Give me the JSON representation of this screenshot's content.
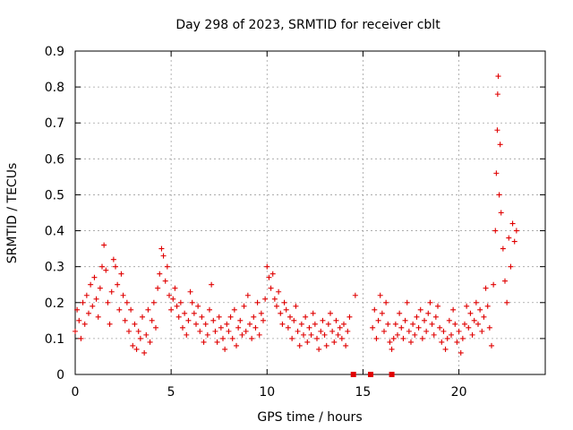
{
  "chart_data": {
    "type": "scatter",
    "title": "Day 298 of 2023, SRMTID for receiver cblt",
    "xlabel": "GPS time / hours",
    "ylabel": "SRMTID / TECUs",
    "xlim": [
      0,
      24.5
    ],
    "ylim": [
      0,
      0.9
    ],
    "x_ticks": [
      0,
      5,
      10,
      15,
      20
    ],
    "y_ticks": [
      0,
      0.1,
      0.2,
      0.3,
      0.4,
      0.5,
      0.6,
      0.7,
      0.8,
      0.9
    ],
    "x_tick_labels": [
      "0",
      "5",
      "10",
      "15",
      "20"
    ],
    "y_tick_labels": [
      "0",
      "0.1",
      "0.2",
      "0.3",
      "0.4",
      "0.5",
      "0.6",
      "0.7",
      "0.8",
      "0.9"
    ],
    "grid": true,
    "marker": "+",
    "color": "#e00000",
    "series": [
      {
        "name": "SRMTID",
        "points": [
          [
            0.0,
            0.12
          ],
          [
            0.1,
            0.18
          ],
          [
            0.2,
            0.15
          ],
          [
            0.3,
            0.1
          ],
          [
            0.4,
            0.2
          ],
          [
            0.5,
            0.14
          ],
          [
            0.6,
            0.22
          ],
          [
            0.7,
            0.17
          ],
          [
            0.8,
            0.25
          ],
          [
            0.9,
            0.19
          ],
          [
            1.0,
            0.27
          ],
          [
            1.1,
            0.21
          ],
          [
            1.2,
            0.16
          ],
          [
            1.3,
            0.24
          ],
          [
            1.4,
            0.3
          ],
          [
            1.5,
            0.36
          ],
          [
            1.6,
            0.29
          ],
          [
            1.7,
            0.2
          ],
          [
            1.8,
            0.14
          ],
          [
            1.9,
            0.23
          ],
          [
            2.0,
            0.32
          ],
          [
            2.1,
            0.3
          ],
          [
            2.2,
            0.25
          ],
          [
            2.3,
            0.18
          ],
          [
            2.4,
            0.28
          ],
          [
            2.5,
            0.22
          ],
          [
            2.6,
            0.15
          ],
          [
            2.7,
            0.2
          ],
          [
            2.8,
            0.12
          ],
          [
            2.9,
            0.18
          ],
          [
            3.0,
            0.08
          ],
          [
            3.1,
            0.14
          ],
          [
            3.2,
            0.07
          ],
          [
            3.3,
            0.12
          ],
          [
            3.4,
            0.1
          ],
          [
            3.5,
            0.16
          ],
          [
            3.6,
            0.06
          ],
          [
            3.7,
            0.11
          ],
          [
            3.8,
            0.18
          ],
          [
            3.9,
            0.09
          ],
          [
            4.0,
            0.15
          ],
          [
            4.1,
            0.2
          ],
          [
            4.2,
            0.13
          ],
          [
            4.3,
            0.24
          ],
          [
            4.4,
            0.28
          ],
          [
            4.5,
            0.35
          ],
          [
            4.6,
            0.33
          ],
          [
            4.7,
            0.26
          ],
          [
            4.8,
            0.3
          ],
          [
            4.9,
            0.22
          ],
          [
            5.0,
            0.18
          ],
          [
            5.1,
            0.21
          ],
          [
            5.2,
            0.24
          ],
          [
            5.3,
            0.19
          ],
          [
            5.4,
            0.16
          ],
          [
            5.5,
            0.2
          ],
          [
            5.6,
            0.13
          ],
          [
            5.7,
            0.17
          ],
          [
            5.8,
            0.11
          ],
          [
            5.9,
            0.15
          ],
          [
            6.0,
            0.23
          ],
          [
            6.1,
            0.2
          ],
          [
            6.2,
            0.17
          ],
          [
            6.3,
            0.14
          ],
          [
            6.4,
            0.19
          ],
          [
            6.5,
            0.12
          ],
          [
            6.6,
            0.16
          ],
          [
            6.7,
            0.09
          ],
          [
            6.8,
            0.14
          ],
          [
            6.9,
            0.11
          ],
          [
            7.0,
            0.18
          ],
          [
            7.1,
            0.25
          ],
          [
            7.2,
            0.15
          ],
          [
            7.3,
            0.12
          ],
          [
            7.4,
            0.09
          ],
          [
            7.5,
            0.16
          ],
          [
            7.6,
            0.13
          ],
          [
            7.7,
            0.1
          ],
          [
            7.8,
            0.07
          ],
          [
            7.9,
            0.14
          ],
          [
            8.0,
            0.12
          ],
          [
            8.1,
            0.16
          ],
          [
            8.2,
            0.1
          ],
          [
            8.3,
            0.18
          ],
          [
            8.4,
            0.08
          ],
          [
            8.5,
            0.13
          ],
          [
            8.6,
            0.15
          ],
          [
            8.7,
            0.11
          ],
          [
            8.8,
            0.19
          ],
          [
            8.9,
            0.12
          ],
          [
            9.0,
            0.22
          ],
          [
            9.1,
            0.14
          ],
          [
            9.2,
            0.1
          ],
          [
            9.3,
            0.16
          ],
          [
            9.4,
            0.13
          ],
          [
            9.5,
            0.2
          ],
          [
            9.6,
            0.11
          ],
          [
            9.7,
            0.17
          ],
          [
            9.8,
            0.15
          ],
          [
            9.9,
            0.21
          ],
          [
            10.0,
            0.3
          ],
          [
            10.1,
            0.27
          ],
          [
            10.2,
            0.24
          ],
          [
            10.3,
            0.28
          ],
          [
            10.4,
            0.21
          ],
          [
            10.5,
            0.19
          ],
          [
            10.6,
            0.23
          ],
          [
            10.7,
            0.17
          ],
          [
            10.8,
            0.14
          ],
          [
            10.9,
            0.2
          ],
          [
            11.0,
            0.18
          ],
          [
            11.1,
            0.13
          ],
          [
            11.2,
            0.16
          ],
          [
            11.3,
            0.1
          ],
          [
            11.4,
            0.15
          ],
          [
            11.5,
            0.19
          ],
          [
            11.6,
            0.12
          ],
          [
            11.7,
            0.08
          ],
          [
            11.8,
            0.14
          ],
          [
            11.9,
            0.11
          ],
          [
            12.0,
            0.16
          ],
          [
            12.1,
            0.09
          ],
          [
            12.2,
            0.13
          ],
          [
            12.3,
            0.11
          ],
          [
            12.4,
            0.17
          ],
          [
            12.5,
            0.14
          ],
          [
            12.6,
            0.1
          ],
          [
            12.7,
            0.07
          ],
          [
            12.8,
            0.12
          ],
          [
            12.9,
            0.15
          ],
          [
            13.0,
            0.11
          ],
          [
            13.1,
            0.08
          ],
          [
            13.2,
            0.14
          ],
          [
            13.3,
            0.17
          ],
          [
            13.4,
            0.12
          ],
          [
            13.5,
            0.09
          ],
          [
            13.6,
            0.15
          ],
          [
            13.7,
            0.11
          ],
          [
            13.8,
            0.13
          ],
          [
            13.9,
            0.1
          ],
          [
            14.0,
            0.14
          ],
          [
            14.1,
            0.08
          ],
          [
            14.2,
            0.12
          ],
          [
            14.3,
            0.16
          ],
          [
            14.6,
            0.22
          ],
          [
            15.5,
            0.13
          ],
          [
            15.6,
            0.18
          ],
          [
            15.7,
            0.1
          ],
          [
            15.8,
            0.15
          ],
          [
            15.9,
            0.22
          ],
          [
            16.0,
            0.17
          ],
          [
            16.1,
            0.12
          ],
          [
            16.2,
            0.2
          ],
          [
            16.3,
            0.14
          ],
          [
            16.4,
            0.09
          ],
          [
            16.5,
            0.07
          ],
          [
            16.6,
            0.1
          ],
          [
            16.7,
            0.14
          ],
          [
            16.8,
            0.11
          ],
          [
            16.9,
            0.17
          ],
          [
            17.0,
            0.13
          ],
          [
            17.1,
            0.1
          ],
          [
            17.2,
            0.15
          ],
          [
            17.3,
            0.2
          ],
          [
            17.4,
            0.12
          ],
          [
            17.5,
            0.09
          ],
          [
            17.6,
            0.14
          ],
          [
            17.7,
            0.11
          ],
          [
            17.8,
            0.16
          ],
          [
            17.9,
            0.13
          ],
          [
            18.0,
            0.18
          ],
          [
            18.1,
            0.1
          ],
          [
            18.2,
            0.15
          ],
          [
            18.3,
            0.12
          ],
          [
            18.4,
            0.17
          ],
          [
            18.5,
            0.2
          ],
          [
            18.6,
            0.14
          ],
          [
            18.7,
            0.11
          ],
          [
            18.8,
            0.16
          ],
          [
            18.9,
            0.19
          ],
          [
            19.0,
            0.13
          ],
          [
            19.1,
            0.09
          ],
          [
            19.2,
            0.12
          ],
          [
            19.3,
            0.07
          ],
          [
            19.4,
            0.1
          ],
          [
            19.5,
            0.15
          ],
          [
            19.6,
            0.11
          ],
          [
            19.7,
            0.18
          ],
          [
            19.8,
            0.14
          ],
          [
            19.9,
            0.09
          ],
          [
            20.0,
            0.12
          ],
          [
            20.1,
            0.06
          ],
          [
            20.2,
            0.1
          ],
          [
            20.3,
            0.14
          ],
          [
            20.4,
            0.19
          ],
          [
            20.5,
            0.13
          ],
          [
            20.6,
            0.17
          ],
          [
            20.7,
            0.11
          ],
          [
            20.8,
            0.15
          ],
          [
            20.9,
            0.2
          ],
          [
            21.0,
            0.14
          ],
          [
            21.1,
            0.18
          ],
          [
            21.2,
            0.12
          ],
          [
            21.3,
            0.16
          ],
          [
            21.4,
            0.24
          ],
          [
            21.5,
            0.19
          ],
          [
            21.6,
            0.13
          ],
          [
            21.7,
            0.08
          ],
          [
            21.8,
            0.25
          ],
          [
            21.9,
            0.4
          ],
          [
            21.95,
            0.56
          ],
          [
            22.0,
            0.68
          ],
          [
            22.02,
            0.78
          ],
          [
            22.05,
            0.83
          ],
          [
            22.1,
            0.5
          ],
          [
            22.15,
            0.64
          ],
          [
            22.2,
            0.45
          ],
          [
            22.3,
            0.35
          ],
          [
            22.4,
            0.26
          ],
          [
            22.5,
            0.2
          ],
          [
            22.6,
            0.38
          ],
          [
            22.7,
            0.3
          ],
          [
            22.8,
            0.42
          ],
          [
            22.9,
            0.37
          ],
          [
            23.0,
            0.4
          ]
        ]
      }
    ],
    "gap_markers": [
      {
        "x": 14.5,
        "y": 0
      },
      {
        "x": 15.4,
        "y": 0
      },
      {
        "x": 16.5,
        "y": 0
      }
    ]
  }
}
